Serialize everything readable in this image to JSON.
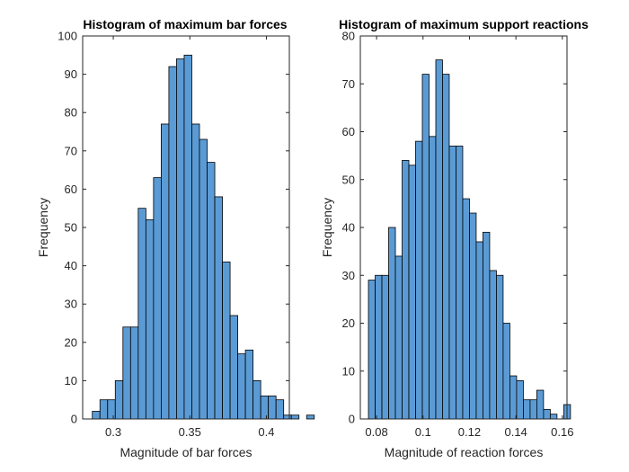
{
  "chart_data": [
    {
      "type": "bar",
      "title": "Histogram of maximum bar forces",
      "xlabel": "Magnitude of bar forces",
      "ylabel": "Frequency",
      "xlim": [
        0.28,
        0.415
      ],
      "ylim": [
        0,
        100
      ],
      "xticks": [
        0.3,
        0.35,
        0.4
      ],
      "xtick_labels": [
        "0.3",
        "0.35",
        "0.4"
      ],
      "yticks": [
        0,
        10,
        20,
        30,
        40,
        50,
        60,
        70,
        80,
        90,
        100
      ],
      "ytick_labels": [
        "0",
        "10",
        "20",
        "30",
        "40",
        "50",
        "60",
        "70",
        "80",
        "90",
        "100"
      ],
      "bin_start": 0.2863,
      "bin_width": 0.005,
      "values": [
        2,
        5,
        5,
        10,
        24,
        24,
        55,
        52,
        63,
        77,
        92,
        94,
        95,
        77,
        73,
        67,
        58,
        41,
        27,
        17,
        18,
        10,
        6,
        6,
        5,
        1,
        1,
        0,
        1
      ],
      "bar_color": "#5b9bd5",
      "grid": false
    },
    {
      "type": "bar",
      "title": "Histogram of maximum support reactions",
      "xlabel": "Magnitude of reaction forces",
      "ylabel": "Frequency",
      "xlim": [
        0.073,
        0.162
      ],
      "ylim": [
        0,
        80
      ],
      "xticks": [
        0.08,
        0.1,
        0.12,
        0.14,
        0.16
      ],
      "xtick_labels": [
        "0.08",
        "0.1",
        "0.12",
        "0.14",
        "0.16"
      ],
      "yticks": [
        0,
        10,
        20,
        30,
        40,
        50,
        60,
        70,
        80
      ],
      "ytick_labels": [
        "0",
        "10",
        "20",
        "30",
        "40",
        "50",
        "60",
        "70",
        "80"
      ],
      "bin_start": 0.0765,
      "bin_width": 0.0029,
      "values": [
        29,
        30,
        30,
        40,
        34,
        54,
        53,
        58,
        72,
        59,
        75,
        72,
        57,
        57,
        46,
        43,
        37,
        39,
        31,
        30,
        20,
        9,
        8,
        4,
        4,
        6,
        2,
        1,
        0,
        3
      ],
      "bar_color": "#5b9bd5",
      "grid": false
    }
  ]
}
